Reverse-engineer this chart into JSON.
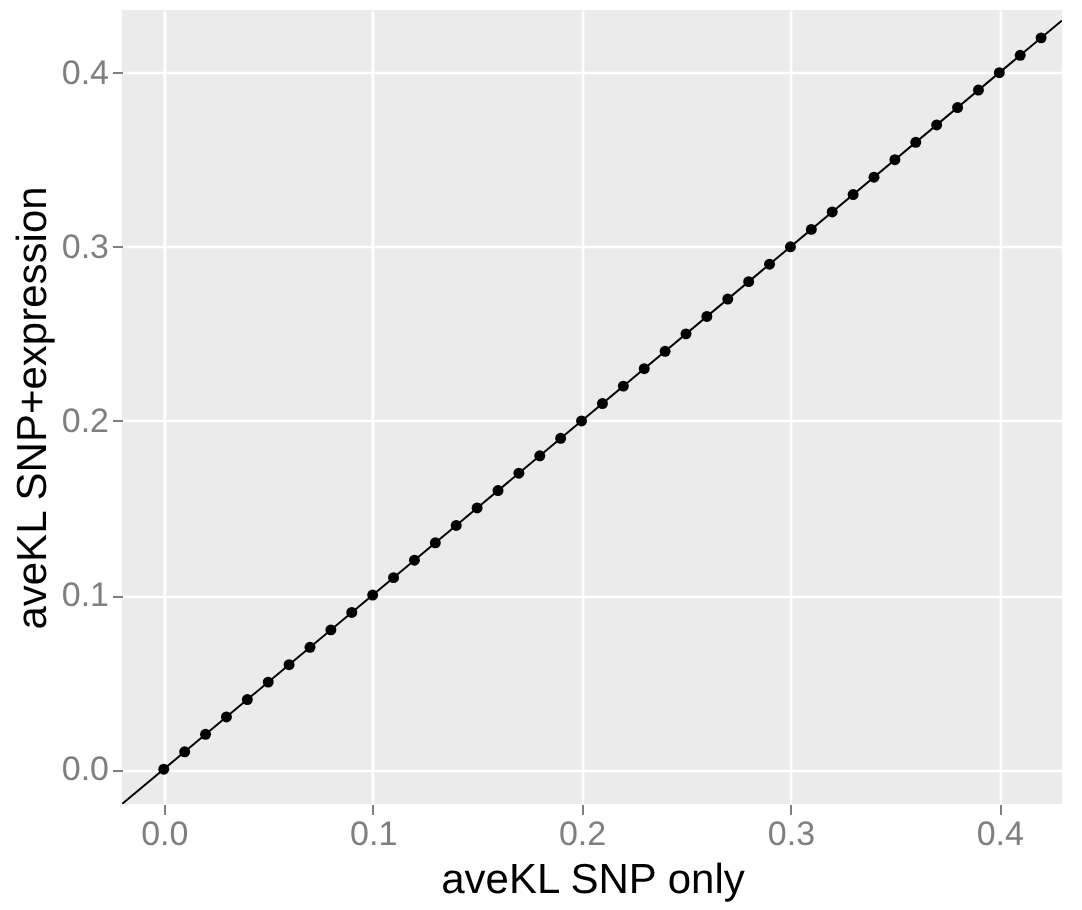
{
  "chart_data": {
    "type": "scatter",
    "xlabel": "aveKL SNP only",
    "ylabel": "aveKL SNP+expression",
    "xlim": [
      -0.02,
      0.43
    ],
    "ylim": [
      -0.02,
      0.436
    ],
    "xticks": [
      {
        "value": 0,
        "label": "0.0"
      },
      0.1,
      0.2,
      0.3,
      0.4
    ],
    "yticks": [
      {
        "value": 0,
        "label": "0.0"
      },
      0.1,
      0.2,
      0.3,
      0.4
    ],
    "grid": true,
    "series": [
      {
        "marker": "circle",
        "color": "#000000",
        "x": [
          0.0,
          0.01,
          0.02,
          0.03,
          0.04,
          0.05,
          0.06,
          0.07,
          0.08,
          0.09,
          0.1,
          0.11,
          0.12,
          0.13,
          0.14,
          0.15,
          0.16,
          0.17,
          0.18,
          0.19,
          0.2,
          0.21,
          0.22,
          0.23,
          0.24,
          0.25,
          0.26,
          0.27,
          0.28,
          0.29,
          0.3,
          0.31,
          0.32,
          0.33,
          0.34,
          0.35,
          0.36,
          0.37,
          0.38,
          0.39,
          0.4,
          0.41,
          0.42
        ],
        "values": [
          0.0,
          0.01,
          0.02,
          0.03,
          0.04,
          0.05,
          0.06,
          0.07,
          0.08,
          0.09,
          0.1,
          0.11,
          0.12,
          0.13,
          0.14,
          0.15,
          0.16,
          0.17,
          0.18,
          0.19,
          0.2,
          0.21,
          0.22,
          0.23,
          0.24,
          0.25,
          0.26,
          0.27,
          0.28,
          0.29,
          0.3,
          0.31,
          0.32,
          0.33,
          0.34,
          0.35,
          0.36,
          0.37,
          0.38,
          0.39,
          0.4,
          0.41,
          0.42
        ]
      },
      {
        "type": "line",
        "color": "#000000",
        "x": [
          -0.02,
          0.43
        ],
        "values": [
          -0.02,
          0.43
        ]
      }
    ]
  }
}
